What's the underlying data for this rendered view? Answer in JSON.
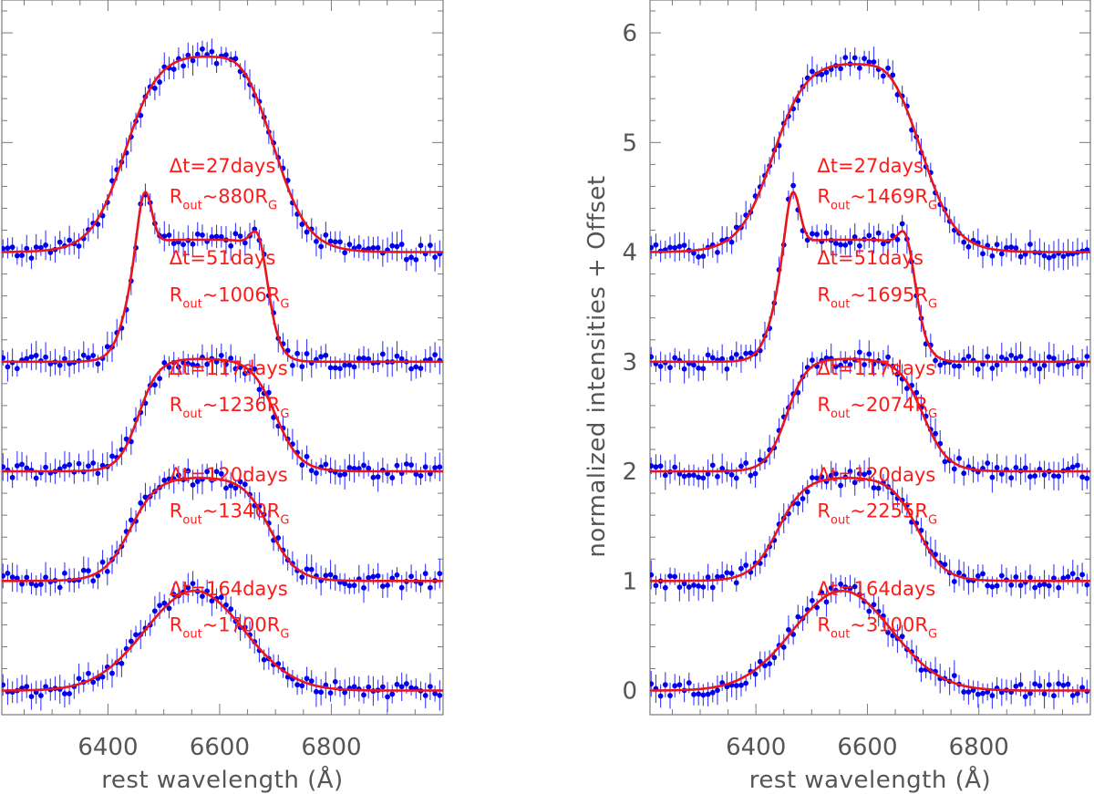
{
  "chart_data": [
    {
      "type": "line",
      "panel": "left",
      "xlabel": "rest wavelength (Å)",
      "ylabel": "",
      "xlim": [
        6210,
        7000
      ],
      "ylim": [
        -0.22,
        6.3
      ],
      "xticks": [
        "6400",
        "6600",
        "6800"
      ],
      "yticks": [],
      "series": [
        {
          "name": "Δt=27days",
          "offset": 4,
          "label_dt": "Δt=27days",
          "label_r_prefix": "R",
          "label_r_sub": "out",
          "label_r_mid": "~880R",
          "label_r_sub2": "G",
          "peak": 1.82,
          "shape": "flat",
          "kind": "broad"
        },
        {
          "name": "Δt=51days",
          "offset": 3,
          "label_dt": "Δt=51days",
          "label_r_prefix": "R",
          "label_r_sub": "out",
          "label_r_mid": "~1006R",
          "label_r_sub2": "G",
          "peak": 1.67,
          "shape": "double",
          "kind": "double"
        },
        {
          "name": "Δt=117days",
          "offset": 2,
          "label_dt": "Δt=117days",
          "label_r_prefix": "R",
          "label_r_sub": "out",
          "label_r_mid": "~1236R",
          "label_r_sub2": "G",
          "peak": 1.03,
          "shape": "flat",
          "kind": "mid"
        },
        {
          "name": "Δt=120days",
          "offset": 1,
          "label_dt": "Δt=120days",
          "label_r_prefix": "R",
          "label_r_sub": "out",
          "label_r_mid": "~1340R",
          "label_r_sub2": "G",
          "peak": 0.95,
          "shape": "round",
          "kind": "mid2"
        },
        {
          "name": "Δt=164days",
          "offset": 0,
          "label_dt": "Δt=164days",
          "label_r_prefix": "R",
          "label_r_sub": "out",
          "label_r_mid": "~1700R",
          "label_r_sub2": "G",
          "peak": 0.91,
          "shape": "gauss",
          "kind": "gauss"
        }
      ]
    },
    {
      "type": "line",
      "panel": "right",
      "xlabel": "rest wavelength (Å)",
      "ylabel": "normalized intensities + Offset",
      "xlim": [
        6210,
        7000
      ],
      "ylim": [
        -0.22,
        6.3
      ],
      "xticks": [
        "6400",
        "6600",
        "6800"
      ],
      "yticks": [
        "0",
        "1",
        "2",
        "3",
        "4",
        "5",
        "6"
      ],
      "series": [
        {
          "name": "Δt=27days",
          "offset": 4,
          "label_dt": "Δt=27days",
          "label_r_prefix": "R",
          "label_r_sub": "out",
          "label_r_mid": "~1469R",
          "label_r_sub2": "G",
          "peak": 1.75,
          "shape": "flat",
          "kind": "broad"
        },
        {
          "name": "Δt=51days",
          "offset": 3,
          "label_dt": "Δt=51days",
          "label_r_prefix": "R",
          "label_r_sub": "out",
          "label_r_mid": "~1695R",
          "label_r_sub2": "G",
          "peak": 1.67,
          "shape": "double",
          "kind": "double"
        },
        {
          "name": "Δt=117days",
          "offset": 2,
          "label_dt": "Δt=117days",
          "label_r_prefix": "R",
          "label_r_sub": "out",
          "label_r_mid": "~2074R",
          "label_r_sub2": "G",
          "peak": 1.03,
          "shape": "flat",
          "kind": "mid"
        },
        {
          "name": "Δt=120days",
          "offset": 1,
          "label_dt": "Δt=120days",
          "label_r_prefix": "R",
          "label_r_sub": "out",
          "label_r_mid": "~2255R",
          "label_r_sub2": "G",
          "peak": 0.95,
          "shape": "round",
          "kind": "mid2"
        },
        {
          "name": "Δt=164days",
          "offset": 0,
          "label_dt": "Δt=164days",
          "label_r_prefix": "R",
          "label_r_sub": "out",
          "label_r_mid": "~3100R",
          "label_r_sub2": "G",
          "peak": 0.91,
          "shape": "gauss",
          "kind": "gauss"
        }
      ]
    }
  ],
  "colors": {
    "data": "#0000ee",
    "errorbar": "#3a3aff",
    "model": "#e8141e",
    "annotation": "#ff1a1a",
    "axis": "#7a7a7a"
  }
}
